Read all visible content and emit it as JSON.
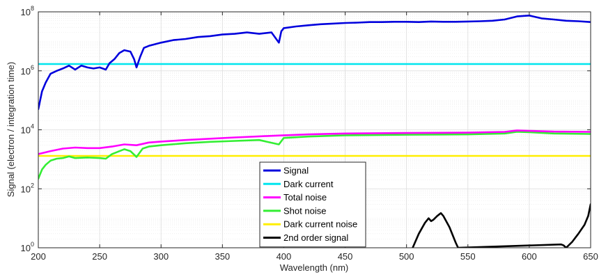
{
  "chart_data": {
    "type": "line",
    "xlabel": "Wavelength (nm)",
    "ylabel": "Signal (electron / integration time)",
    "xlim": [
      200,
      650
    ],
    "ylim": [
      1,
      100000000
    ],
    "yscale": "log",
    "xticks": [
      "200",
      "250",
      "300",
      "350",
      "400",
      "450",
      "500",
      "550",
      "600",
      "650"
    ],
    "yticks": [
      {
        "base": "10",
        "exp": "0"
      },
      {
        "base": "10",
        "exp": "2"
      },
      {
        "base": "10",
        "exp": "4"
      },
      {
        "base": "10",
        "exp": "6"
      },
      {
        "base": "10",
        "exp": "8"
      }
    ],
    "grid": true,
    "legend_position": "bottom-center",
    "series": [
      {
        "name": "Signal",
        "color": "#0000dd",
        "x": [
          200,
          203,
          206,
          210,
          215,
          220,
          225,
          230,
          235,
          240,
          245,
          250,
          255,
          258,
          262,
          266,
          270,
          275,
          278,
          280,
          283,
          286,
          290,
          300,
          310,
          320,
          330,
          340,
          350,
          360,
          370,
          380,
          390,
          396,
          398,
          400,
          410,
          420,
          430,
          440,
          450,
          460,
          470,
          480,
          490,
          500,
          510,
          520,
          530,
          540,
          550,
          560,
          570,
          580,
          590,
          600,
          610,
          620,
          630,
          640,
          650
        ],
        "y": [
          50000,
          200000,
          400000,
          800000,
          1000000,
          1200000,
          1500000,
          1100000,
          1500000,
          1300000,
          1200000,
          1300000,
          1100000,
          1800000,
          2500000,
          4000000,
          5000000,
          4500000,
          2500000,
          1300000,
          3000000,
          6000000,
          7000000,
          9000000,
          11000000,
          12000000,
          14000000,
          15000000,
          17000000,
          18000000,
          20000000,
          18000000,
          20000000,
          9000000,
          22000000,
          28000000,
          32000000,
          35000000,
          38000000,
          40000000,
          42000000,
          43000000,
          45000000,
          45000000,
          46000000,
          46000000,
          45000000,
          47000000,
          46000000,
          46000000,
          47000000,
          48000000,
          50000000,
          55000000,
          70000000,
          75000000,
          60000000,
          55000000,
          50000000,
          48000000,
          45000000
        ]
      },
      {
        "name": "Dark current",
        "color": "#00e5ee",
        "x": [
          200,
          650
        ],
        "y": [
          1700000,
          1700000
        ]
      },
      {
        "name": "Total noise",
        "color": "#ff00ff",
        "x": [
          200,
          210,
          220,
          230,
          240,
          250,
          260,
          270,
          280,
          290,
          300,
          320,
          340,
          360,
          380,
          400,
          420,
          450,
          500,
          550,
          580,
          590,
          600,
          620,
          650
        ],
        "y": [
          1500,
          1900,
          2300,
          2500,
          2400,
          2400,
          2700,
          3200,
          3000,
          3700,
          4000,
          4500,
          5000,
          5500,
          6000,
          6500,
          7000,
          7500,
          7800,
          8000,
          8500,
          9500,
          9200,
          8700,
          8500
        ]
      },
      {
        "name": "Shot noise",
        "color": "#33ee33",
        "x": [
          200,
          203,
          206,
          210,
          215,
          220,
          225,
          230,
          240,
          250,
          255,
          260,
          270,
          275,
          280,
          285,
          290,
          300,
          320,
          340,
          360,
          380,
          396,
          400,
          420,
          450,
          500,
          550,
          580,
          590,
          600,
          620,
          650
        ],
        "y": [
          220,
          450,
          650,
          900,
          1050,
          1100,
          1250,
          1100,
          1150,
          1100,
          1050,
          1500,
          2200,
          1900,
          1200,
          2300,
          2700,
          3000,
          3500,
          3900,
          4200,
          4500,
          3200,
          5300,
          5900,
          6500,
          6800,
          7000,
          7500,
          8600,
          8300,
          7500,
          7200
        ]
      },
      {
        "name": "Dark current noise",
        "color": "#ffee00",
        "x": [
          200,
          650
        ],
        "y": [
          1300,
          1300
        ]
      },
      {
        "name": "2nd order signal",
        "color": "#000000",
        "x": [
          505,
          510,
          515,
          518,
          520,
          522,
          525,
          528,
          530,
          535,
          540,
          542,
          626,
          628,
          630,
          635,
          640,
          645,
          648,
          650
        ],
        "y": [
          1,
          3,
          7,
          10,
          8,
          9,
          12,
          15,
          12,
          5,
          1.5,
          1,
          1.3,
          1.2,
          1,
          1.6,
          3,
          6,
          12,
          30
        ]
      }
    ]
  }
}
